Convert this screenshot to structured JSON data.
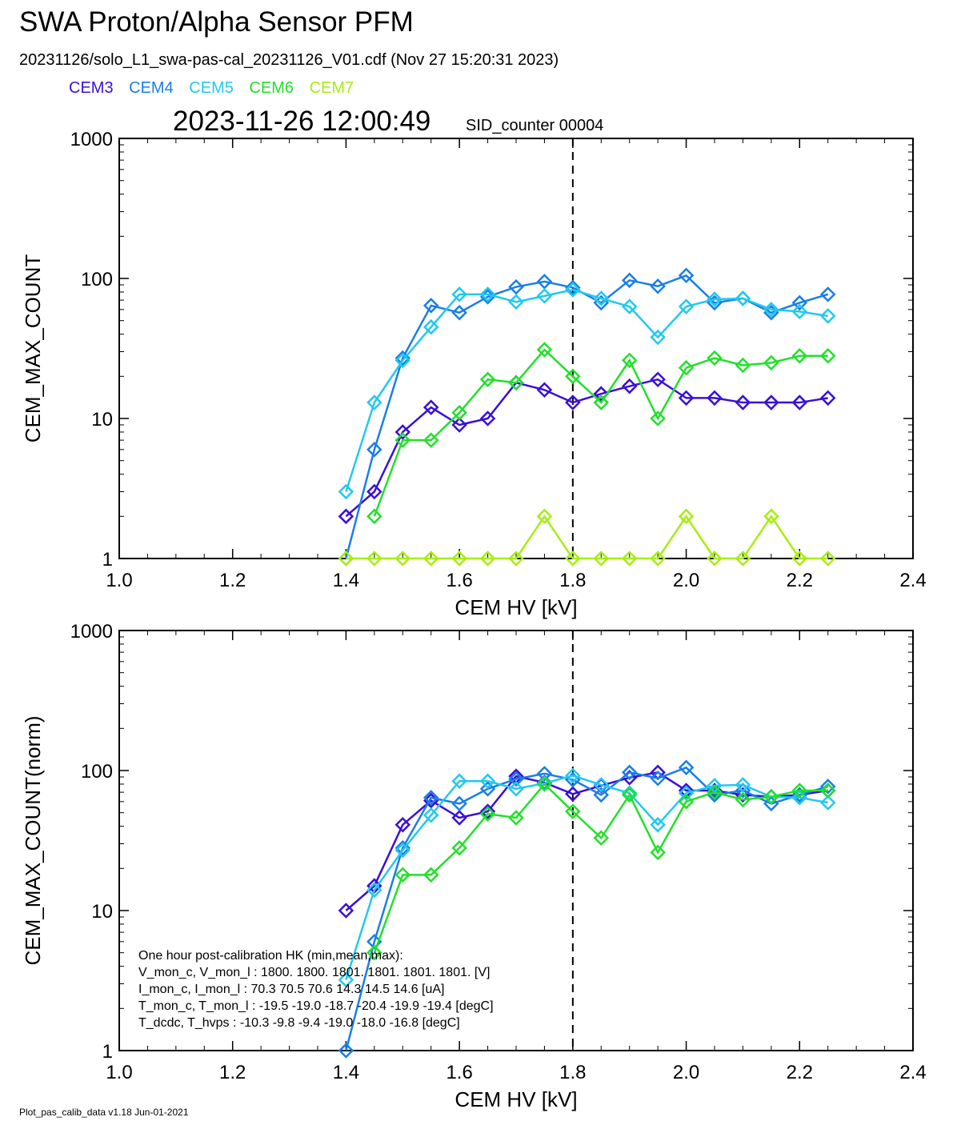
{
  "header": {
    "title": "SWA Proton/Alpha Sensor PFM",
    "subtitle": "20231126/solo_L1_swa-pas-cal_20231126_V01.cdf  (Nov 27 15:20:31 2023)",
    "datetime": "2023-11-26 12:00:49",
    "sid": "SID_counter 00004"
  },
  "legend": [
    {
      "name": "CEM3",
      "color": "#3a10d8"
    },
    {
      "name": "CEM4",
      "color": "#1a7ee8"
    },
    {
      "name": "CEM5",
      "color": "#22c8f0"
    },
    {
      "name": "CEM6",
      "color": "#22e02a"
    },
    {
      "name": "CEM7",
      "color": "#a6ee10"
    }
  ],
  "footer": "Plot_pas_calib_data v1.18 Jun-01-2021",
  "hk_table": [
    "One hour post-calibration HK (min,mean,max):",
    "V_mon_c, V_mon_l :   1800.  1800.  1801.       1801.  1801.  1801. [V]",
    "I_mon_c,  I_mon_l :     70.3   70.5   70.6        14.3   14.5   14.6  [uA]",
    "T_mon_c, T_mon_l :   -19.5  -19.0  -18.7       -20.4  -19.9  -19.4  [degC]",
    "T_dcdc,    T_hvps :    -10.3   -9.8   -9.4        -19.0  -18.0  -16.8  [degC]"
  ],
  "chart_data": [
    {
      "type": "line",
      "xlabel": "CEM HV [kV]",
      "ylabel": "CEM_MAX_COUNT",
      "xlim": [
        1.0,
        2.4
      ],
      "ylim": [
        1,
        1000
      ],
      "yscale": "log",
      "xticks": [
        "1.0",
        "1.2",
        "1.4",
        "1.6",
        "1.8",
        "2.0",
        "2.2",
        "2.4"
      ],
      "yticks": [
        "1",
        "10",
        "100",
        "1000"
      ],
      "vline": 1.8,
      "marker": "diamond",
      "x": [
        1.4,
        1.45,
        1.5,
        1.55,
        1.6,
        1.65,
        1.7,
        1.75,
        1.8,
        1.85,
        1.9,
        1.95,
        2.0,
        2.05,
        2.1,
        2.15,
        2.2,
        2.25
      ],
      "series": [
        {
          "name": "CEM3",
          "values": [
            2,
            3,
            8,
            12,
            9,
            10,
            18,
            16,
            13,
            15,
            17,
            19,
            14,
            14,
            13,
            13,
            13,
            14
          ]
        },
        {
          "name": "CEM4",
          "values": [
            1,
            6,
            27,
            64,
            57,
            74,
            87,
            95,
            86,
            67,
            97,
            88,
            105,
            67,
            72,
            57,
            67,
            77
          ]
        },
        {
          "name": "CEM5",
          "values": [
            3,
            13,
            26,
            45,
            77,
            77,
            68,
            75,
            83,
            72,
            63,
            38,
            63,
            71,
            72,
            60,
            58,
            54
          ]
        },
        {
          "name": "CEM6",
          "values": [
            null,
            2,
            7,
            7,
            11,
            19,
            18,
            31,
            20,
            13,
            26,
            10,
            23,
            27,
            24,
            25,
            28,
            28
          ]
        },
        {
          "name": "CEM7",
          "values": [
            1,
            1,
            1,
            1,
            1,
            1,
            1,
            2,
            1,
            1,
            1,
            1,
            2,
            1,
            1,
            2,
            1,
            1
          ]
        }
      ]
    },
    {
      "type": "line",
      "xlabel": "CEM HV [kV]",
      "ylabel": "CEM_MAX_COUNT(norm)",
      "xlim": [
        1.0,
        2.4
      ],
      "ylim": [
        1,
        1000
      ],
      "yscale": "log",
      "xticks": [
        "1.0",
        "1.2",
        "1.4",
        "1.6",
        "1.8",
        "2.0",
        "2.2",
        "2.4"
      ],
      "yticks": [
        "1",
        "10",
        "100",
        "1000"
      ],
      "vline": 1.8,
      "marker": "diamond",
      "x": [
        1.4,
        1.45,
        1.5,
        1.55,
        1.6,
        1.65,
        1.7,
        1.75,
        1.8,
        1.85,
        1.9,
        1.95,
        2.0,
        2.05,
        2.1,
        2.15,
        2.2,
        2.25
      ],
      "series": [
        {
          "name": "CEM3",
          "values": [
            10,
            15,
            41,
            61,
            46,
            51,
            91,
            82,
            68,
            78,
            89,
            97,
            72,
            72,
            67,
            65,
            67,
            72
          ]
        },
        {
          "name": "CEM4",
          "values": [
            1,
            6,
            28,
            64,
            58,
            74,
            87,
            95,
            86,
            67,
            97,
            88,
            105,
            67,
            72,
            58,
            67,
            77
          ]
        },
        {
          "name": "CEM5",
          "values": [
            3.2,
            14,
            27,
            48,
            84,
            84,
            74,
            81,
            92,
            79,
            69,
            41,
            69,
            78,
            79,
            65,
            64,
            59
          ]
        },
        {
          "name": "CEM6",
          "values": [
            null,
            5,
            18,
            18,
            28,
            49,
            46,
            80,
            51,
            33,
            67,
            26,
            60,
            70,
            62,
            65,
            72,
            72
          ]
        },
        {
          "name": "CEM7",
          "values": [
            null,
            null,
            null,
            null,
            null,
            null,
            null,
            null,
            null,
            null,
            null,
            null,
            null,
            null,
            null,
            null,
            null,
            null
          ]
        }
      ]
    }
  ]
}
